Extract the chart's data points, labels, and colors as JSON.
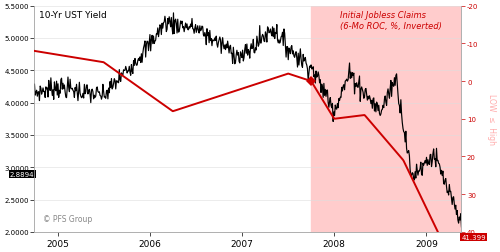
{
  "title_left": "10-Yr UST Yield",
  "title_right": "Initial Jobless Claims\n(6-Mo ROC, %, Inverted)",
  "watermark": "© PFS Group",
  "left_label_last": "2.8894",
  "right_label_last": "41.399",
  "yleft_min": 2.0,
  "yleft_max": 5.5,
  "yright_min": -20,
  "yright_max": 40,
  "yright_invert": true,
  "shade_start": 2007.75,
  "shade_color": "#ffcccc",
  "black_line_color": "#000000",
  "red_line_color": "#cc0000",
  "background_color": "#ffffff",
  "right_axis_label": "LOW ≤ High",
  "right_yticks": [
    -20,
    -10,
    0,
    10,
    20,
    30,
    40
  ],
  "left_yticks": [
    2.0,
    2.5,
    3.0,
    3.5,
    4.0,
    4.5,
    5.0,
    5.5
  ],
  "xtick_years": [
    2005,
    2006,
    2007,
    2008,
    2009
  ],
  "xmin": 2004.75,
  "xmax": 2009.38
}
